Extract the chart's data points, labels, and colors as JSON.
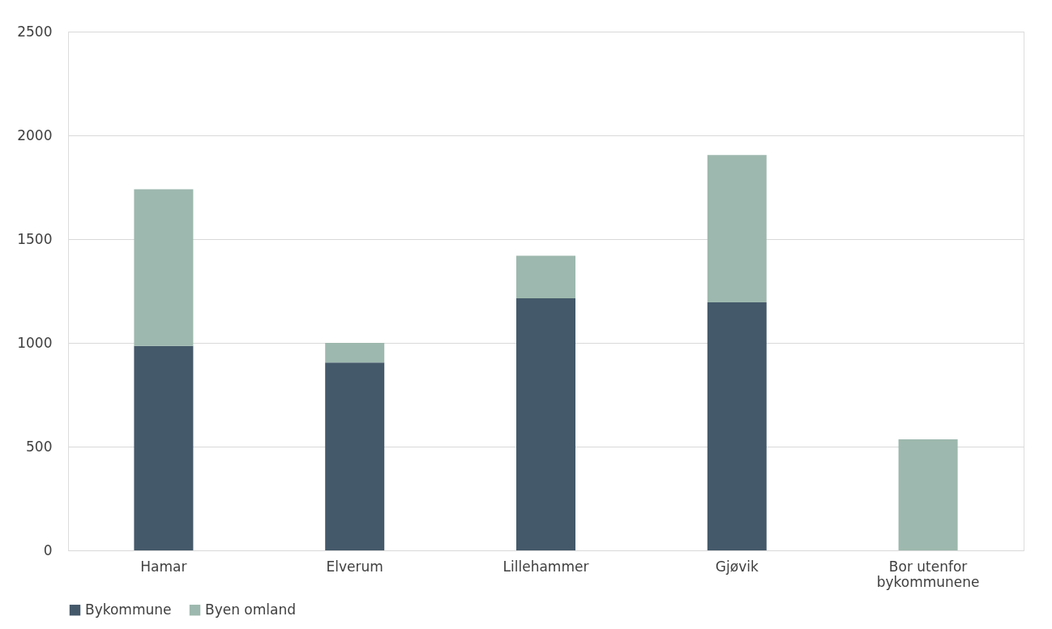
{
  "chart_data": {
    "type": "bar",
    "stacked": true,
    "categories": [
      "Hamar",
      "Elverum",
      "Lillehammer",
      "Gjøvik",
      "Bor utenfor bykommunene"
    ],
    "series": [
      {
        "name": "Bykommune",
        "color": "#44596a",
        "values": [
          985,
          905,
          1215,
          1195,
          0
        ]
      },
      {
        "name": "Byen omland",
        "color": "#9db8ae",
        "values": [
          755,
          95,
          205,
          710,
          535
        ]
      }
    ],
    "ylim": [
      0,
      2500
    ],
    "yticks": [
      0,
      500,
      1000,
      1500,
      2000,
      2500
    ],
    "grid": "y",
    "legend": "bottom"
  }
}
